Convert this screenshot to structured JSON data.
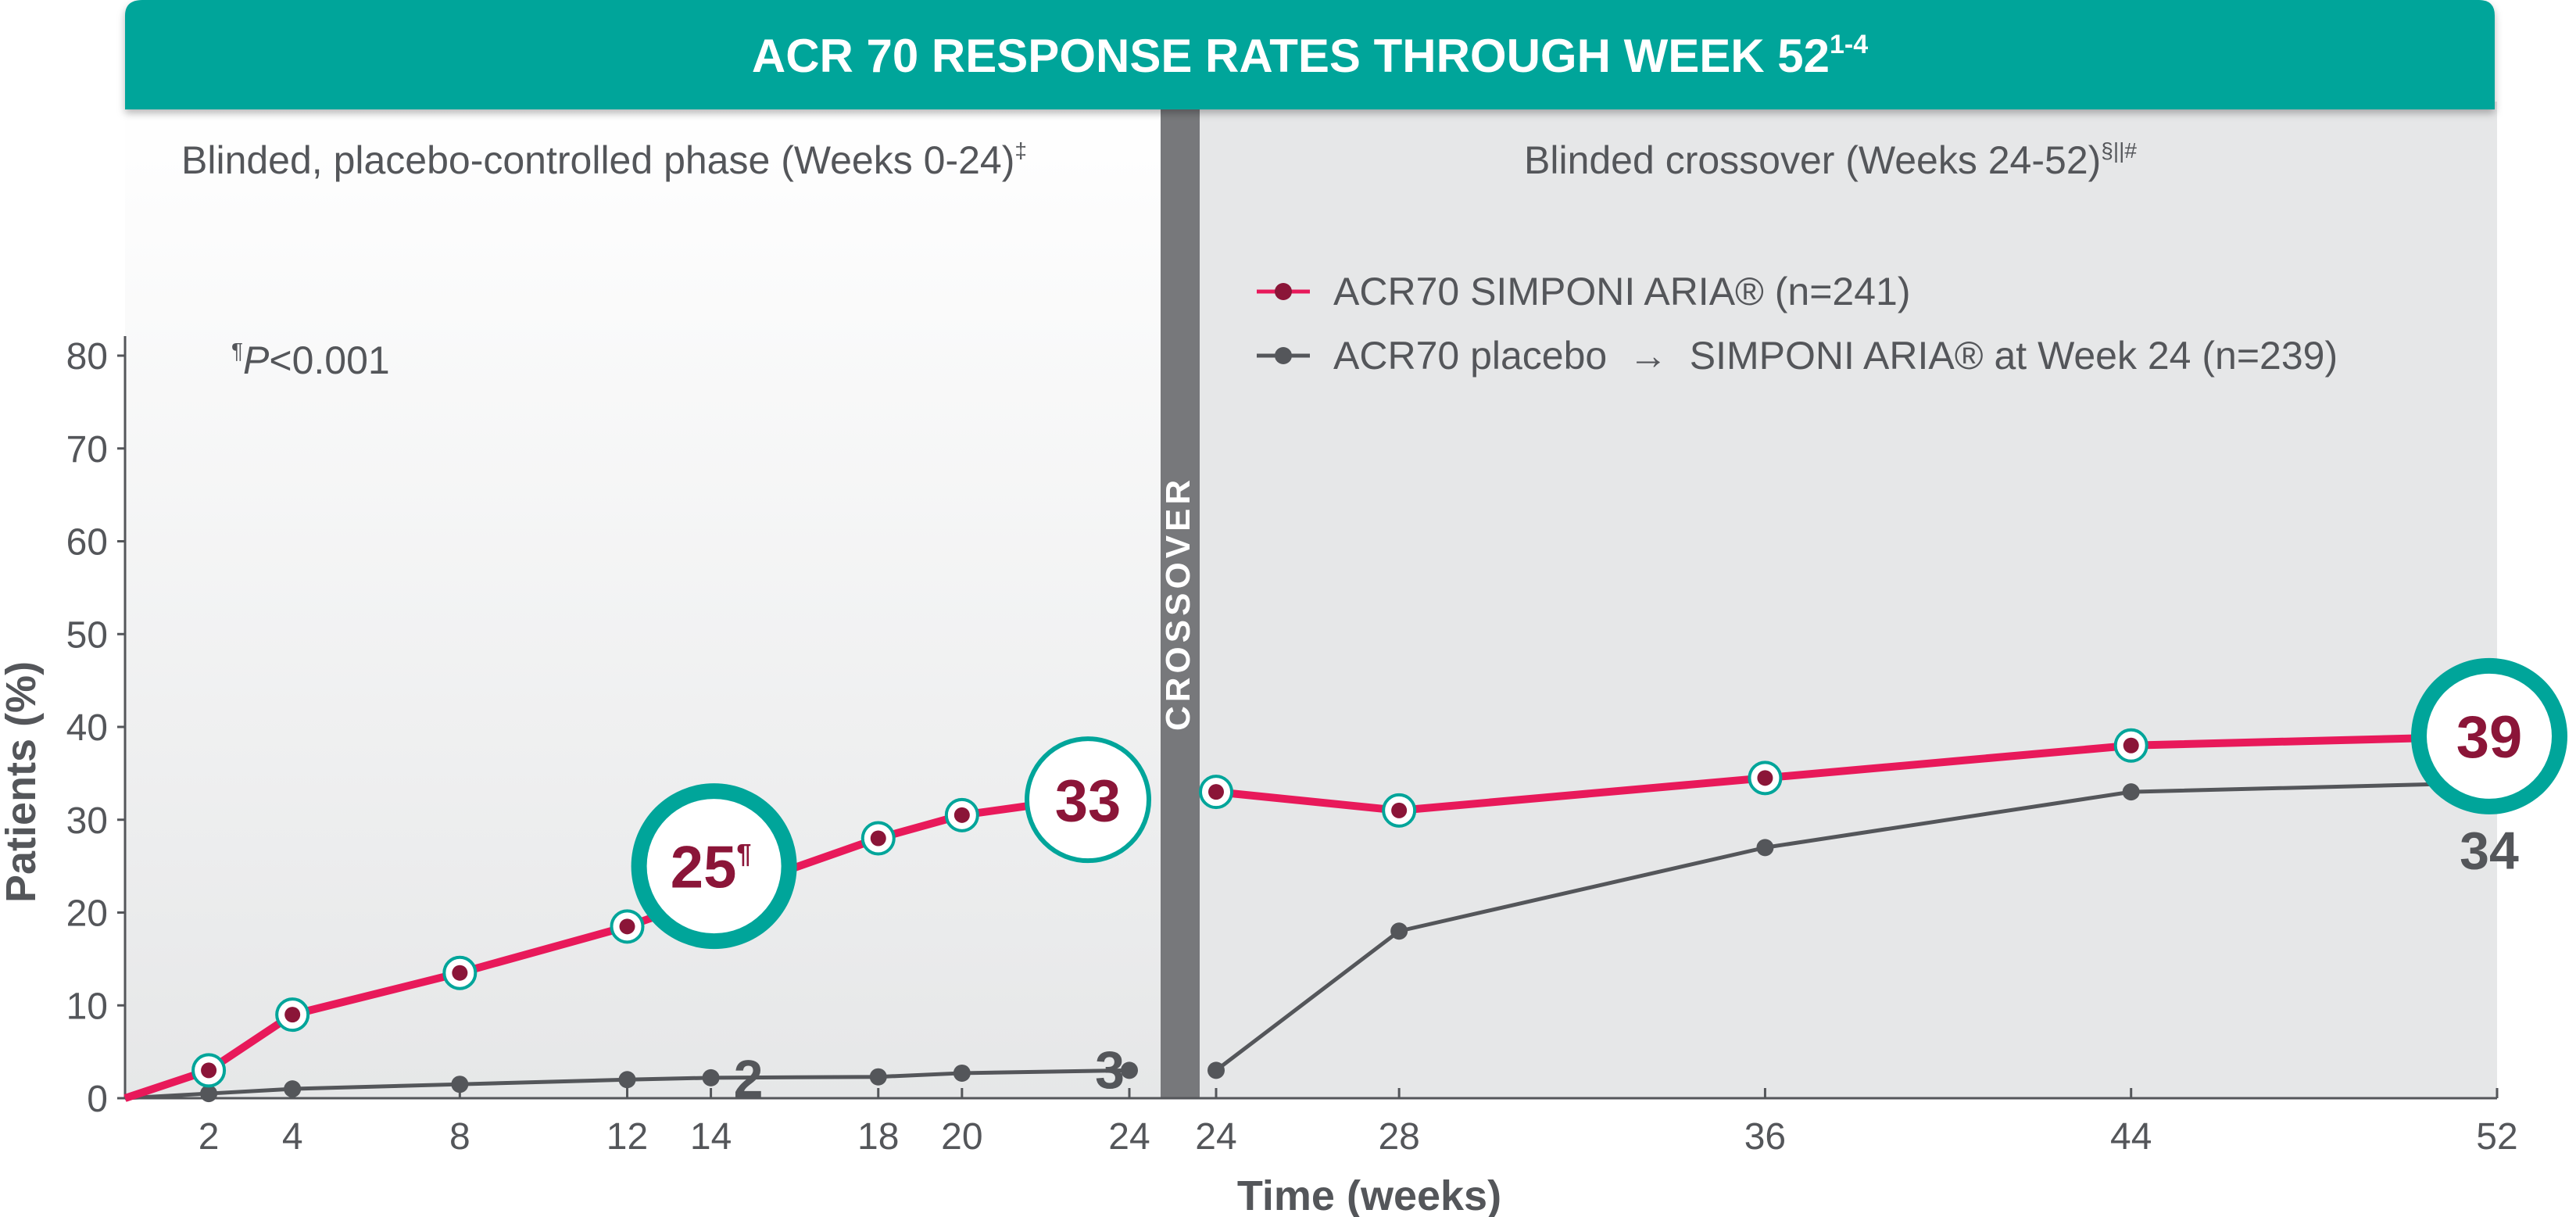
{
  "chart_data": {
    "type": "line",
    "title": "ACR 70 RESPONSE RATES THROUGH WEEK 52",
    "title_sup": "1-4",
    "ylabel": "Patients (%)",
    "xlabel": "Time (weeks)",
    "ylim": [
      0,
      80
    ],
    "yticks": [
      "0",
      "10",
      "20",
      "30",
      "40",
      "50",
      "60",
      "70",
      "80"
    ],
    "phases": [
      {
        "label": "Blinded, placebo-controlled phase (Weeks 0-24)",
        "sup": "‡",
        "xticks": [
          "2",
          "4",
          "8",
          "12",
          "14",
          "18",
          "20",
          "24"
        ]
      },
      {
        "label": "Blinded crossover (Weeks 24-52)",
        "sup": "§||#",
        "xticks": [
          "24",
          "28",
          "36",
          "44",
          "52"
        ]
      }
    ],
    "crossover_label": "CROSSOVER",
    "pvalue": {
      "mark": "¶",
      "p": "P",
      "rest": "<0.001"
    },
    "legend": [
      {
        "text": "ACR70 SIMPONI ARIA® (n=241)"
      },
      {
        "text": "ACR70 placebo  →  SIMPONI ARIA® at Week 24 (n=239)"
      }
    ],
    "series": [
      {
        "color": "#e8195a",
        "marker_color": "#8b1538",
        "phase1": {
          "x": [
            0,
            2,
            4,
            8,
            12,
            18,
            20,
            24
          ],
          "y": [
            0,
            3,
            9,
            13.5,
            18.5,
            28,
            30.5,
            33
          ]
        },
        "phase2": {
          "x": [
            24,
            28,
            36,
            44,
            52
          ],
          "y": [
            33,
            31,
            34.5,
            38,
            39
          ]
        },
        "callouts": [
          {
            "text": "25",
            "sup": "¶",
            "x": 14,
            "y": 25
          },
          {
            "text": "33",
            "x": 24,
            "y": 33
          },
          {
            "text": "39",
            "x": 52,
            "y": 39
          }
        ]
      },
      {
        "color": "#54565a",
        "marker_color": "#54565a",
        "phase1": {
          "x": [
            0,
            2,
            4,
            8,
            12,
            14,
            18,
            20,
            24
          ],
          "y": [
            0,
            0.5,
            1,
            1.5,
            2,
            2.2,
            2.3,
            2.7,
            3
          ]
        },
        "phase2": {
          "x": [
            24,
            28,
            36,
            44,
            52
          ],
          "y": [
            3,
            18,
            27,
            33,
            34
          ]
        },
        "labels": [
          {
            "text": "2",
            "x": 14,
            "y": 2
          },
          {
            "text": "3",
            "x": 24,
            "y": 3
          },
          {
            "text": "34",
            "x": 52,
            "y": 34
          }
        ]
      }
    ],
    "colors": {
      "header": "#00a59a",
      "accent": "#e8195a",
      "dark_red": "#8b1538",
      "grey": "#54565a",
      "crossover_band": "#77787b"
    }
  }
}
